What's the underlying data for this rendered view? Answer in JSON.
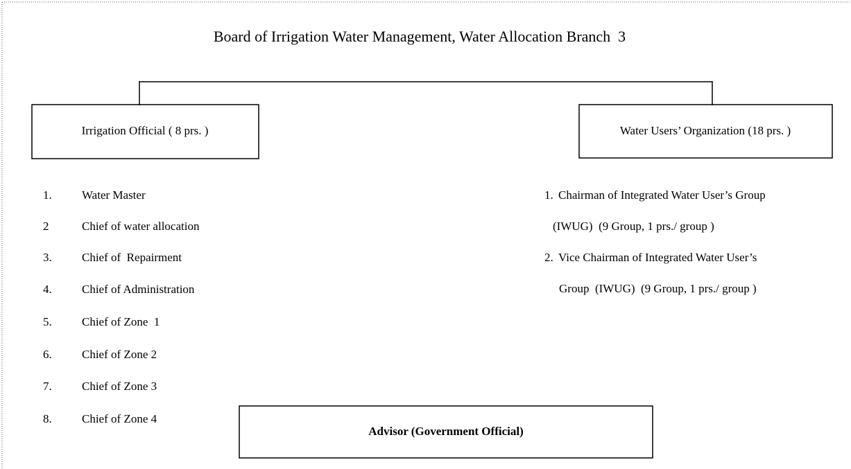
{
  "title": "Board of Irrigation Water Management, Water Allocation Branch  3",
  "left": {
    "label": "Irrigation Official ( 8 prs. )",
    "items": [
      {
        "number": "1.",
        "text": "Water Master"
      },
      {
        "number": "2",
        "text": "Chief of water allocation"
      },
      {
        "number": "3.",
        "text": "Chief of  Repairment"
      },
      {
        "number": "4.",
        "text": "Chief of Administration"
      },
      {
        "number": "5.",
        "text": "Chief of Zone  1"
      },
      {
        "number": "6.",
        "text": "Chief of Zone 2"
      },
      {
        "number": "7.",
        "text": "Chief of Zone 3"
      },
      {
        "number": "8.",
        "text": "Chief of Zone 4"
      }
    ]
  },
  "right": {
    "label": "Water Users’ Organization (18 prs. )",
    "items": [
      {
        "number": "1.",
        "lines": [
          "Chairman of Integrated Water User’s Group",
          "(IWUG)  (9 Group, 1 prs./ group )"
        ]
      },
      {
        "number": "2.",
        "lines": [
          "Vice Chairman of Integrated Water User’s",
          "Group  (IWUG)  (9 Group, 1 prs./ group )"
        ]
      }
    ]
  },
  "advisor": "Advisor (Government Official)"
}
